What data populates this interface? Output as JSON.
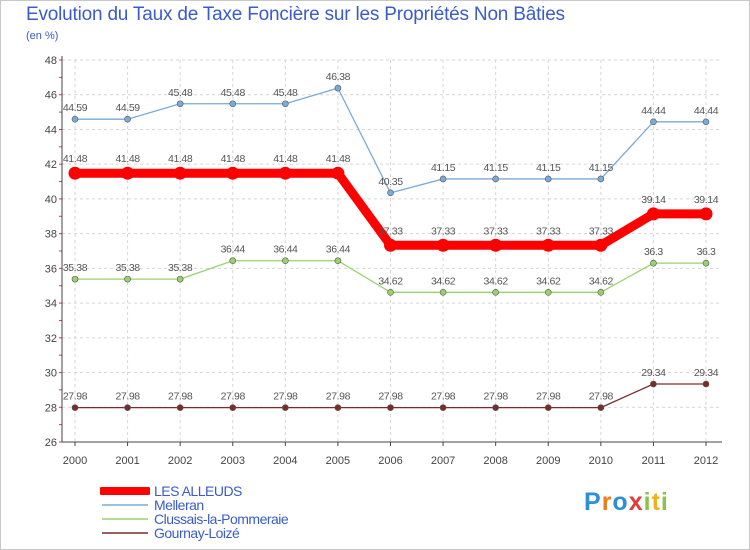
{
  "title": "Evolution du Taux de Taxe Foncière sur les Propriétés Non Bâties",
  "subtitle": "(en %)",
  "brand": {
    "text": "Proxiti",
    "letters": [
      {
        "ch": "P",
        "color": "#2d8fd8"
      },
      {
        "ch": "r",
        "color": "#f07c1a"
      },
      {
        "ch": "o",
        "color": "#2d8fd8"
      },
      {
        "ch": "x",
        "color": "#e23b3b"
      },
      {
        "ch": "i",
        "color": "#8bc34a"
      },
      {
        "ch": "t",
        "color": "#f0b21a"
      },
      {
        "ch": "i",
        "color": "#8bc34a"
      }
    ]
  },
  "chart_data": {
    "type": "line",
    "title": "Evolution du Taux de Taxe Foncière sur les Propriétés Non Bâties",
    "ylabel": "(en %)",
    "xlabel": "",
    "categories": [
      "2000",
      "2001",
      "2002",
      "2003",
      "2004",
      "2005",
      "2006",
      "2007",
      "2008",
      "2009",
      "2010",
      "2011",
      "2012"
    ],
    "ylim": [
      26,
      48
    ],
    "yticks": [
      "26",
      "28",
      "30",
      "32",
      "34",
      "36",
      "38",
      "40",
      "42",
      "44",
      "46",
      "48"
    ],
    "grid": true,
    "legend_position": "bottom-left",
    "series": [
      {
        "name": "LES ALLEUDS",
        "color": "#ff0000",
        "emphasis": true,
        "values": [
          41.48,
          41.48,
          41.48,
          41.48,
          41.48,
          41.48,
          37.33,
          37.33,
          37.33,
          37.33,
          37.33,
          39.14,
          39.14
        ],
        "labels": [
          "41.48",
          "41.48",
          "41.48",
          "41.48",
          "41.48",
          "41.48",
          "37.33",
          "37.33",
          "37.33",
          "37.33",
          "37.33",
          "39.14",
          "39.14"
        ]
      },
      {
        "name": "Melleran",
        "color": "#7aabd6",
        "emphasis": false,
        "values": [
          44.59,
          44.59,
          45.48,
          45.48,
          45.48,
          46.38,
          40.35,
          41.15,
          41.15,
          41.15,
          41.15,
          44.44,
          44.44
        ],
        "labels": [
          "44.59",
          "44.59",
          "45.48",
          "45.48",
          "45.48",
          "46.38",
          "40.35",
          "41.15",
          "41.15",
          "41.15",
          "41.15",
          "44.44",
          "44.44"
        ]
      },
      {
        "name": "Clussais-la-Pommeraie",
        "color": "#99d26c",
        "emphasis": false,
        "values": [
          35.38,
          35.38,
          35.38,
          36.44,
          36.44,
          36.44,
          34.62,
          34.62,
          34.62,
          34.62,
          34.62,
          36.3,
          36.3
        ],
        "labels": [
          "35.38",
          "35.38",
          "35.38",
          "36.44",
          "36.44",
          "36.44",
          "34.62",
          "34.62",
          "34.62",
          "34.62",
          "34.62",
          "36.3",
          "36.3"
        ]
      },
      {
        "name": "Gournay-Loizé",
        "color": "#7a2c2c",
        "emphasis": false,
        "values": [
          27.98,
          27.98,
          27.98,
          27.98,
          27.98,
          27.98,
          27.98,
          27.98,
          27.98,
          27.98,
          27.98,
          29.34,
          29.34
        ],
        "labels": [
          "27.98",
          "27.98",
          "27.98",
          "27.98",
          "27.98",
          "27.98",
          "27.98",
          "27.98",
          "27.98",
          "27.98",
          "27.98",
          "29.34",
          "29.34"
        ]
      }
    ]
  }
}
